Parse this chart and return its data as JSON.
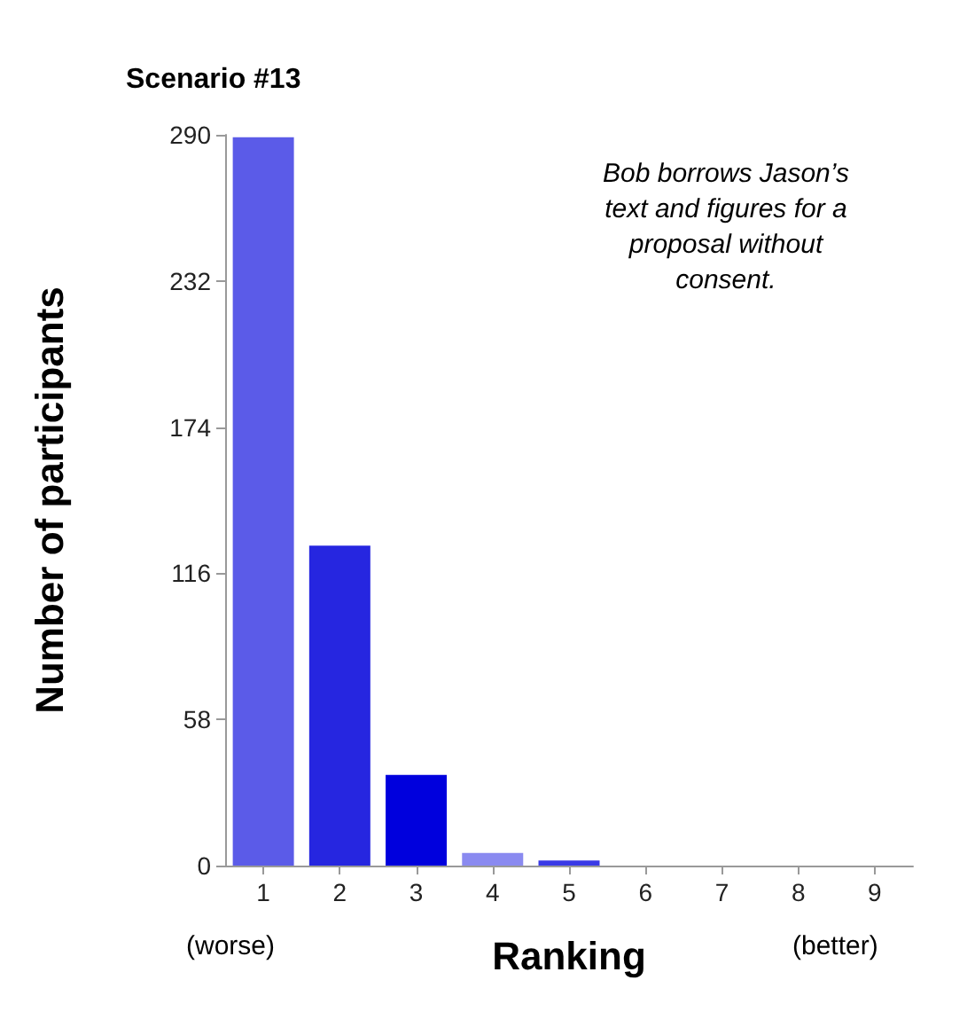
{
  "chart_data": {
    "type": "bar",
    "title": "Scenario #13",
    "xlabel": "Ranking",
    "ylabel": "Number of participants",
    "categories": [
      "1",
      "2",
      "3",
      "4",
      "5",
      "6",
      "7",
      "8",
      "9"
    ],
    "values": [
      289,
      127,
      36,
      5,
      2,
      0,
      0,
      0,
      0
    ],
    "colors": [
      "#5b5be8",
      "#2626e0",
      "#0000dd",
      "#8a8af0",
      "#3a3ae6",
      "#3a3ae6",
      "#3a3ae6",
      "#3a3ae6",
      "#3a3ae6"
    ],
    "ylim": [
      0,
      290
    ],
    "yticks": [
      0,
      58,
      116,
      174,
      232,
      290
    ],
    "grid": false,
    "annotations": [
      "Bob borrows Jason’s\ntext and figures for a\nproposal without\nconsent.",
      "(worse)",
      "(better)"
    ]
  }
}
